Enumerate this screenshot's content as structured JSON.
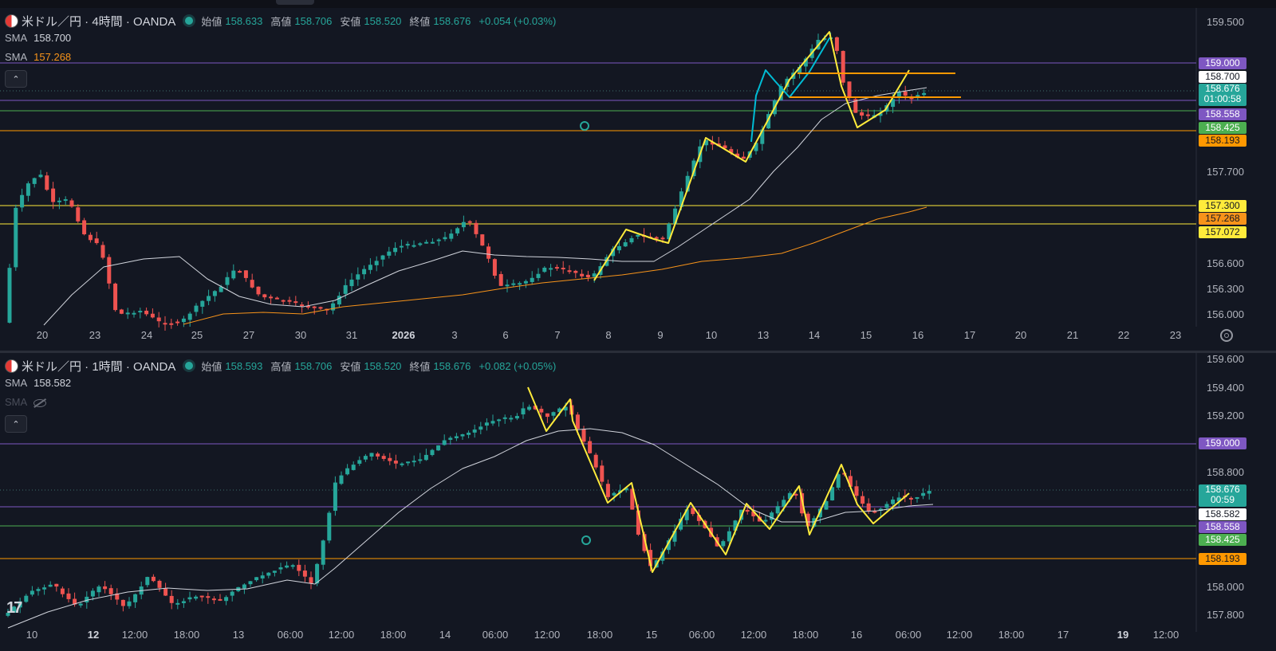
{
  "colors": {
    "up": "#26a69a",
    "down": "#ef5350",
    "sma_fast": "#d1d4dc",
    "sma_slow": "#f7931a",
    "drawing_yellow": "#ffeb3b",
    "drawing_cyan": "#00bcd4",
    "purple": "#7e57c2",
    "green": "#4caf50",
    "orange": "#ff9800",
    "yellow": "#ffeb3b"
  },
  "pane1": {
    "symbol": "米ドル／円 · 4時間 · OANDA",
    "open_label": "始値",
    "open": "158.633",
    "high_label": "高値",
    "high": "158.706",
    "low_label": "安値",
    "low": "158.520",
    "close_label": "終値",
    "close": "158.676",
    "change": "+0.054 (+0.03%)",
    "sma1_name": "SMA",
    "sma1_value": "158.700",
    "sma2_name": "SMA",
    "sma2_value": "157.268",
    "collapse_icon": "chevron-up-icon",
    "y_labels": [
      "159.500",
      "157.700",
      "156.600",
      "156.300",
      "156.000"
    ],
    "x_labels": [
      "20",
      "23",
      "24",
      "25",
      "27",
      "30",
      "31",
      "2026",
      "3",
      "6",
      "7",
      "8",
      "9",
      "10",
      "13",
      "14",
      "15",
      "16",
      "17",
      "20",
      "21",
      "22",
      "23"
    ],
    "tags": {
      "t159000": "159.000",
      "t158700": "158.700",
      "t158676": "158.676",
      "countdown": "01:00:58",
      "t158558": "158.558",
      "t158425": "158.425",
      "t158193": "158.193",
      "t157300": "157.300",
      "t157268": "157.268",
      "t157072": "157.072"
    }
  },
  "pane2": {
    "symbol": "米ドル／円 · 1時間 · OANDA",
    "open_label": "始値",
    "open": "158.593",
    "high_label": "高値",
    "high": "158.706",
    "low_label": "安値",
    "low": "158.520",
    "close_label": "終値",
    "close": "158.676",
    "change": "+0.082 (+0.05%)",
    "sma1_name": "SMA",
    "sma1_value": "158.582",
    "sma2_name": "SMA",
    "collapse_icon": "chevron-up-icon",
    "y_labels": [
      "159.600",
      "159.400",
      "159.200",
      "158.800",
      "158.000",
      "157.800"
    ],
    "x_labels": [
      "10",
      "12",
      "12:00",
      "18:00",
      "13",
      "06:00",
      "12:00",
      "18:00",
      "14",
      "06:00",
      "12:00",
      "18:00",
      "15",
      "06:00",
      "12:00",
      "18:00",
      "16",
      "06:00",
      "12:00",
      "18:00",
      "17",
      "19",
      "12:00"
    ],
    "tags": {
      "t159000": "159.000",
      "t158676": "158.676",
      "countdown": "00:59",
      "t158582": "158.582",
      "t158558": "158.558",
      "t158425": "158.425",
      "t158193": "158.193"
    }
  },
  "brand": "17"
}
